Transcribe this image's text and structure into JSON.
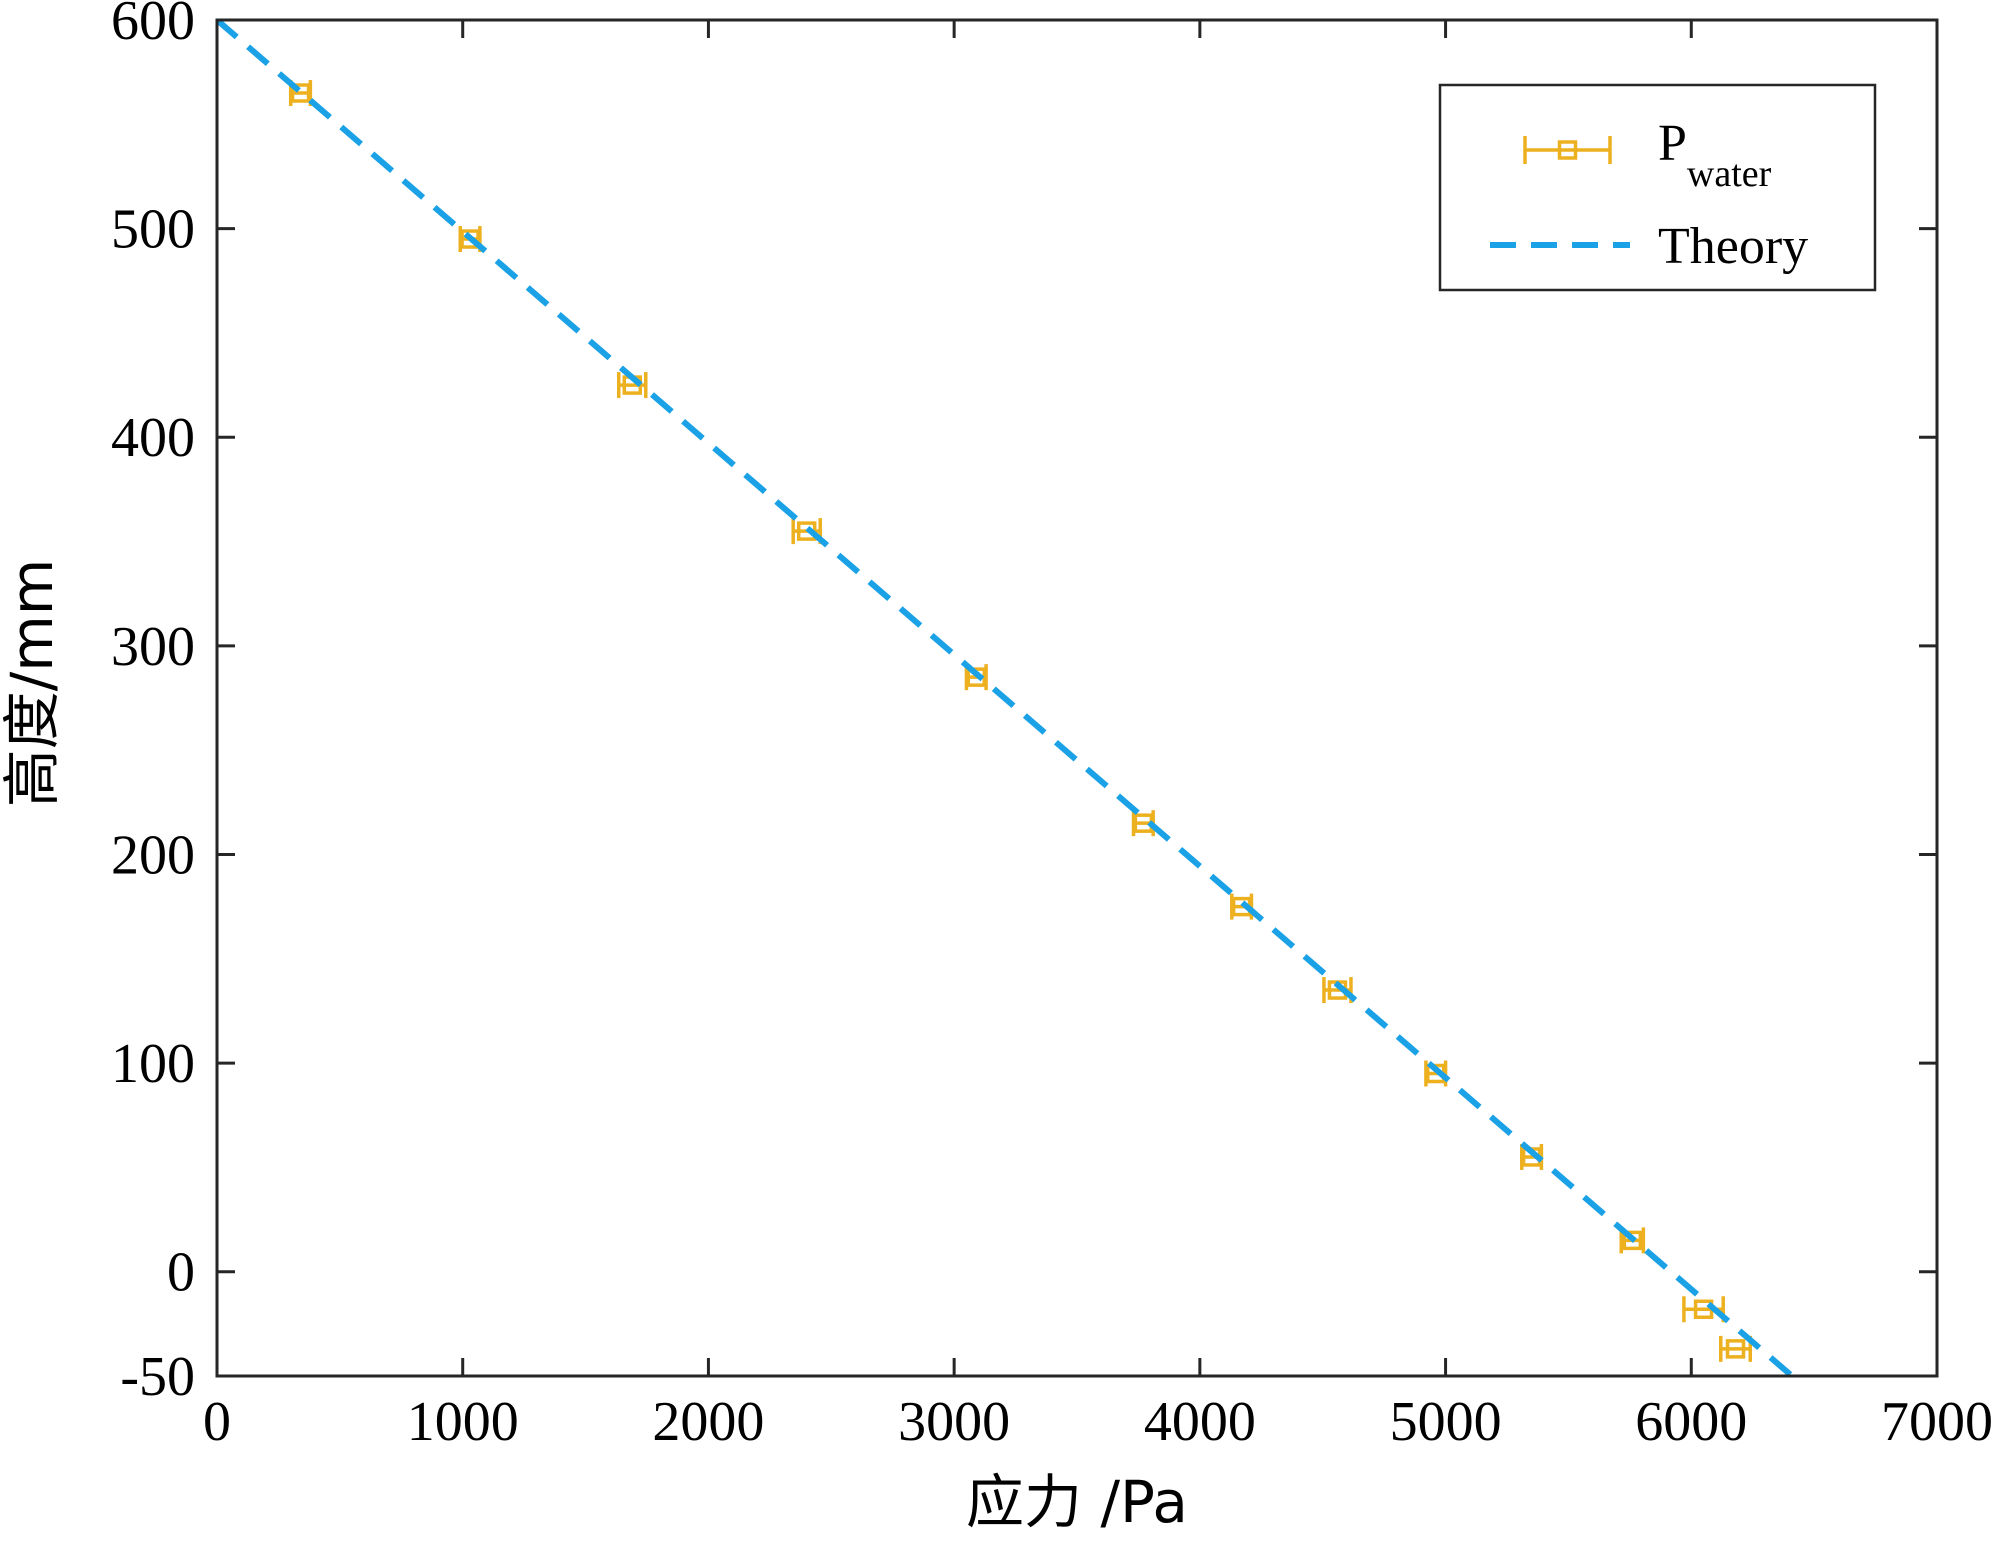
{
  "chart_data": {
    "type": "scatter",
    "xlabel": "应力 /Pa",
    "ylabel": "高度/mm",
    "xlim": [
      0,
      7000
    ],
    "ylim": [
      -50,
      600
    ],
    "xticks": [
      0,
      1000,
      2000,
      3000,
      4000,
      5000,
      6000,
      7000
    ],
    "yticks": [
      -50,
      0,
      100,
      200,
      300,
      400,
      500,
      600
    ],
    "xtick_labels": [
      "0",
      "1000",
      "2000",
      "3000",
      "4000",
      "5000",
      "6000",
      "7000"
    ],
    "ytick_labels": [
      "-50",
      "0",
      "100",
      "200",
      "300",
      "400",
      "500",
      "600"
    ],
    "grid": false,
    "legend_position": "top-right",
    "series": [
      {
        "name": "P",
        "name_subscript": "water",
        "kind": "errorbar-scatter",
        "marker": "square",
        "color": "#EDB120",
        "points": [
          {
            "x": 340,
            "y": 565,
            "xerr": 40
          },
          {
            "x": 1030,
            "y": 495,
            "xerr": 40
          },
          {
            "x": 1690,
            "y": 425,
            "xerr": 55
          },
          {
            "x": 2400,
            "y": 355,
            "xerr": 55
          },
          {
            "x": 3090,
            "y": 285,
            "xerr": 40
          },
          {
            "x": 3770,
            "y": 215,
            "xerr": 40
          },
          {
            "x": 4170,
            "y": 175,
            "xerr": 40
          },
          {
            "x": 4560,
            "y": 135,
            "xerr": 55
          },
          {
            "x": 4960,
            "y": 95,
            "xerr": 40
          },
          {
            "x": 5350,
            "y": 55,
            "xerr": 40
          },
          {
            "x": 5760,
            "y": 15,
            "xerr": 45
          },
          {
            "x": 6050,
            "y": -18,
            "xerr": 80
          },
          {
            "x": 6180,
            "y": -37,
            "xerr": 60
          }
        ]
      },
      {
        "name": "Theory",
        "kind": "line",
        "dash": "dashed",
        "color": "#1AA1E6",
        "x": [
          0,
          6410
        ],
        "y": [
          600,
          -50
        ]
      }
    ]
  }
}
